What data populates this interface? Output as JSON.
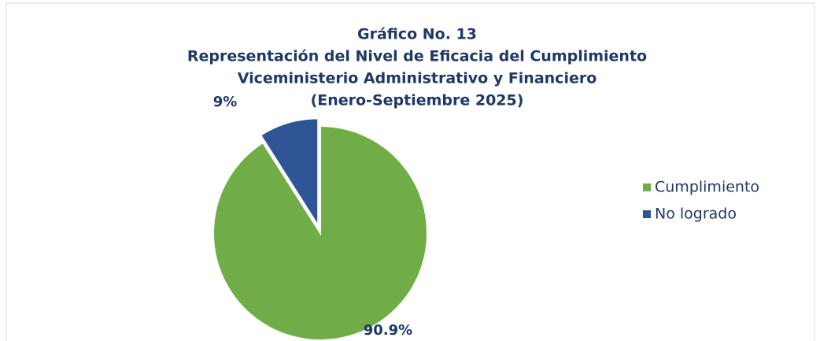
{
  "chart_data": {
    "type": "pie",
    "title": "Gráfico No. 13",
    "subtitle": [
      "Representación del Nivel de Eficacia del Cumplimiento",
      "Viceministerio Administrativo y Financiero",
      "(Enero-Septiembre 2025)"
    ],
    "categories": [
      "Cumplimiento",
      "No logrado"
    ],
    "values": [
      90.9,
      9
    ],
    "value_labels": [
      "90.9%",
      "9%"
    ],
    "colors": [
      "#70ad47",
      "#2f5597"
    ],
    "legend": "right"
  }
}
